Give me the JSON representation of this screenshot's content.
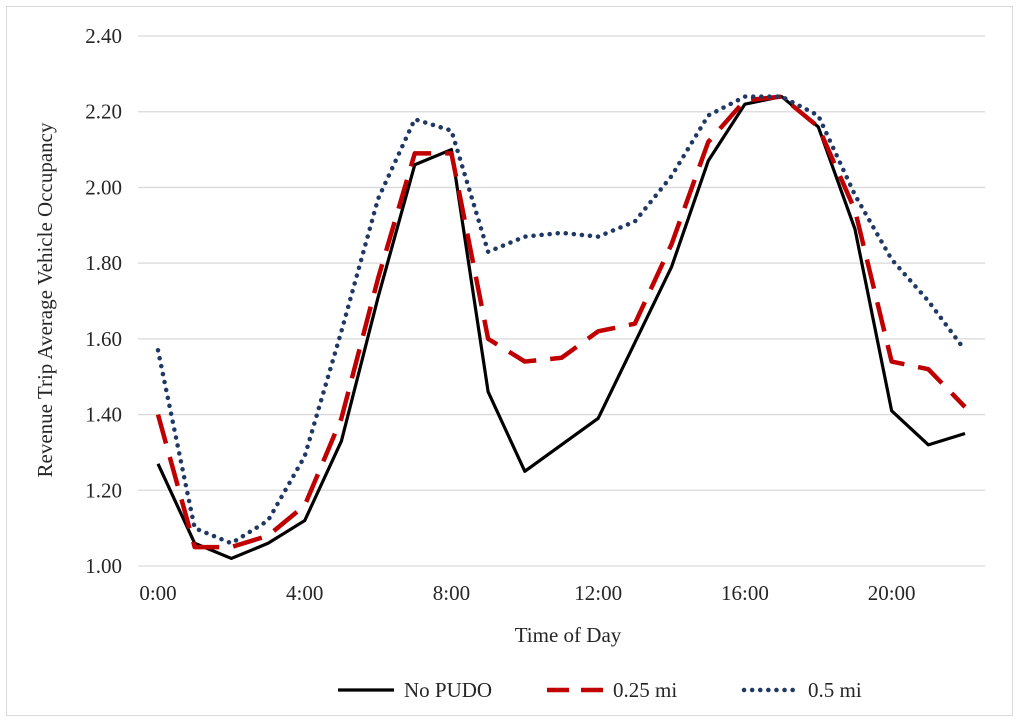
{
  "chart_data": {
    "type": "line",
    "title": "",
    "xlabel": "Time of Day",
    "ylabel": "Revenue Trip Average Vehicle Occupancy",
    "x": [
      0,
      1,
      2,
      3,
      4,
      5,
      6,
      7,
      8,
      9,
      10,
      11,
      12,
      13,
      14,
      15,
      16,
      17,
      18,
      19,
      20,
      21,
      22
    ],
    "xticks": [
      0,
      4,
      8,
      12,
      16,
      20
    ],
    "xtick_labels": [
      "0:00",
      "4:00",
      "8:00",
      "12:00",
      "16:00",
      "20:00"
    ],
    "xlim": [
      0,
      22
    ],
    "ylim": [
      1.0,
      2.4
    ],
    "yticks": [
      1.0,
      1.2,
      1.4,
      1.6,
      1.8,
      2.0,
      2.2,
      2.4
    ],
    "ytick_labels": [
      "1.00",
      "1.20",
      "1.40",
      "1.60",
      "1.80",
      "2.00",
      "2.20",
      "2.40"
    ],
    "grid": "horizontal",
    "legend_position": "bottom",
    "series": [
      {
        "name": "No PUDO",
        "color": "#000000",
        "style": "solid",
        "values": [
          1.27,
          1.06,
          1.02,
          1.06,
          1.12,
          1.33,
          1.71,
          2.06,
          2.1,
          1.46,
          1.25,
          1.32,
          1.39,
          1.59,
          1.79,
          2.07,
          2.22,
          2.24,
          2.16,
          1.89,
          1.41,
          1.32,
          1.35
        ]
      },
      {
        "name": "0.25 mi",
        "color": "#c00000",
        "style": "dashed",
        "values": [
          1.4,
          1.05,
          1.05,
          1.08,
          1.16,
          1.39,
          1.76,
          2.09,
          2.09,
          1.6,
          1.54,
          1.55,
          1.62,
          1.64,
          1.85,
          2.12,
          2.23,
          2.24,
          2.16,
          1.94,
          1.54,
          1.52,
          1.42
        ]
      },
      {
        "name": "0.5 mi",
        "color": "#1f3864",
        "style": "dotted",
        "values": [
          1.57,
          1.1,
          1.06,
          1.12,
          1.29,
          1.62,
          1.97,
          2.18,
          2.15,
          1.83,
          1.87,
          1.88,
          1.87,
          1.91,
          2.03,
          2.19,
          2.24,
          2.24,
          2.19,
          1.98,
          1.81,
          1.7,
          1.57
        ]
      }
    ]
  }
}
